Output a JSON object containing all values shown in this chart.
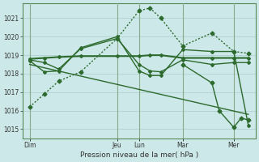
{
  "title": "Pression niveau de la mer( hPa )",
  "background_color": "#cce8e8",
  "grid_color": "#aacccc",
  "line_color": "#2d6a2d",
  "vline_color": "#8aaa8a",
  "ylim": [
    1014.5,
    1021.8
  ],
  "yticks": [
    1015,
    1016,
    1017,
    1018,
    1019,
    1020,
    1021
  ],
  "xlim": [
    0,
    32
  ],
  "day_labels": [
    "Dim",
    "Jeu",
    "Lun",
    "Mar",
    "Mer"
  ],
  "day_positions": [
    1,
    13,
    16,
    22,
    29
  ],
  "series": [
    {
      "x": [
        1,
        3,
        5,
        8,
        13,
        16,
        17.5,
        19,
        22,
        26,
        29,
        31
      ],
      "y": [
        1016.2,
        1016.9,
        1017.6,
        1018.1,
        1019.9,
        1021.4,
        1021.55,
        1021.0,
        1019.5,
        1020.2,
        1019.2,
        1019.1
      ],
      "style": "dotted",
      "marker": "D",
      "markersize": 2.5,
      "linewidth": 1.0
    },
    {
      "x": [
        1,
        3,
        5,
        8,
        13,
        16,
        17.5,
        19,
        22,
        26,
        29,
        31
      ],
      "y": [
        1018.8,
        1018.85,
        1018.9,
        1018.95,
        1018.95,
        1018.95,
        1019.0,
        1019.0,
        1018.85,
        1018.85,
        1018.85,
        1018.85
      ],
      "style": "solid",
      "marker": "D",
      "markersize": 2,
      "linewidth": 1.5
    },
    {
      "x": [
        1,
        3,
        5,
        8,
        13,
        16,
        17.5,
        19,
        22,
        26,
        29,
        31
      ],
      "y": [
        1018.75,
        1018.6,
        1018.25,
        1019.35,
        1019.9,
        1018.5,
        1018.15,
        1018.1,
        1018.75,
        1018.5,
        1018.6,
        1018.6
      ],
      "style": "solid",
      "marker": "D",
      "markersize": 2,
      "linewidth": 1.0
    },
    {
      "x": [
        1,
        3,
        5,
        8,
        13,
        16,
        17.5,
        19,
        22,
        26,
        29,
        31
      ],
      "y": [
        1018.7,
        1018.1,
        1018.15,
        1019.4,
        1020.0,
        1018.15,
        1017.9,
        1017.9,
        1019.3,
        1019.2,
        1019.2,
        1015.2
      ],
      "style": "solid",
      "marker": "D",
      "markersize": 2,
      "linewidth": 1.0
    },
    {
      "x": [
        1,
        31
      ],
      "y": [
        1018.5,
        1015.8
      ],
      "style": "solid",
      "marker": null,
      "markersize": 0,
      "linewidth": 1.0
    },
    {
      "x": [
        22,
        26,
        27,
        29,
        30,
        31
      ],
      "y": [
        1018.5,
        1017.5,
        1016.0,
        1015.1,
        1015.6,
        1015.5
      ],
      "style": "solid",
      "marker": "D",
      "markersize": 2.5,
      "linewidth": 1.0
    }
  ]
}
